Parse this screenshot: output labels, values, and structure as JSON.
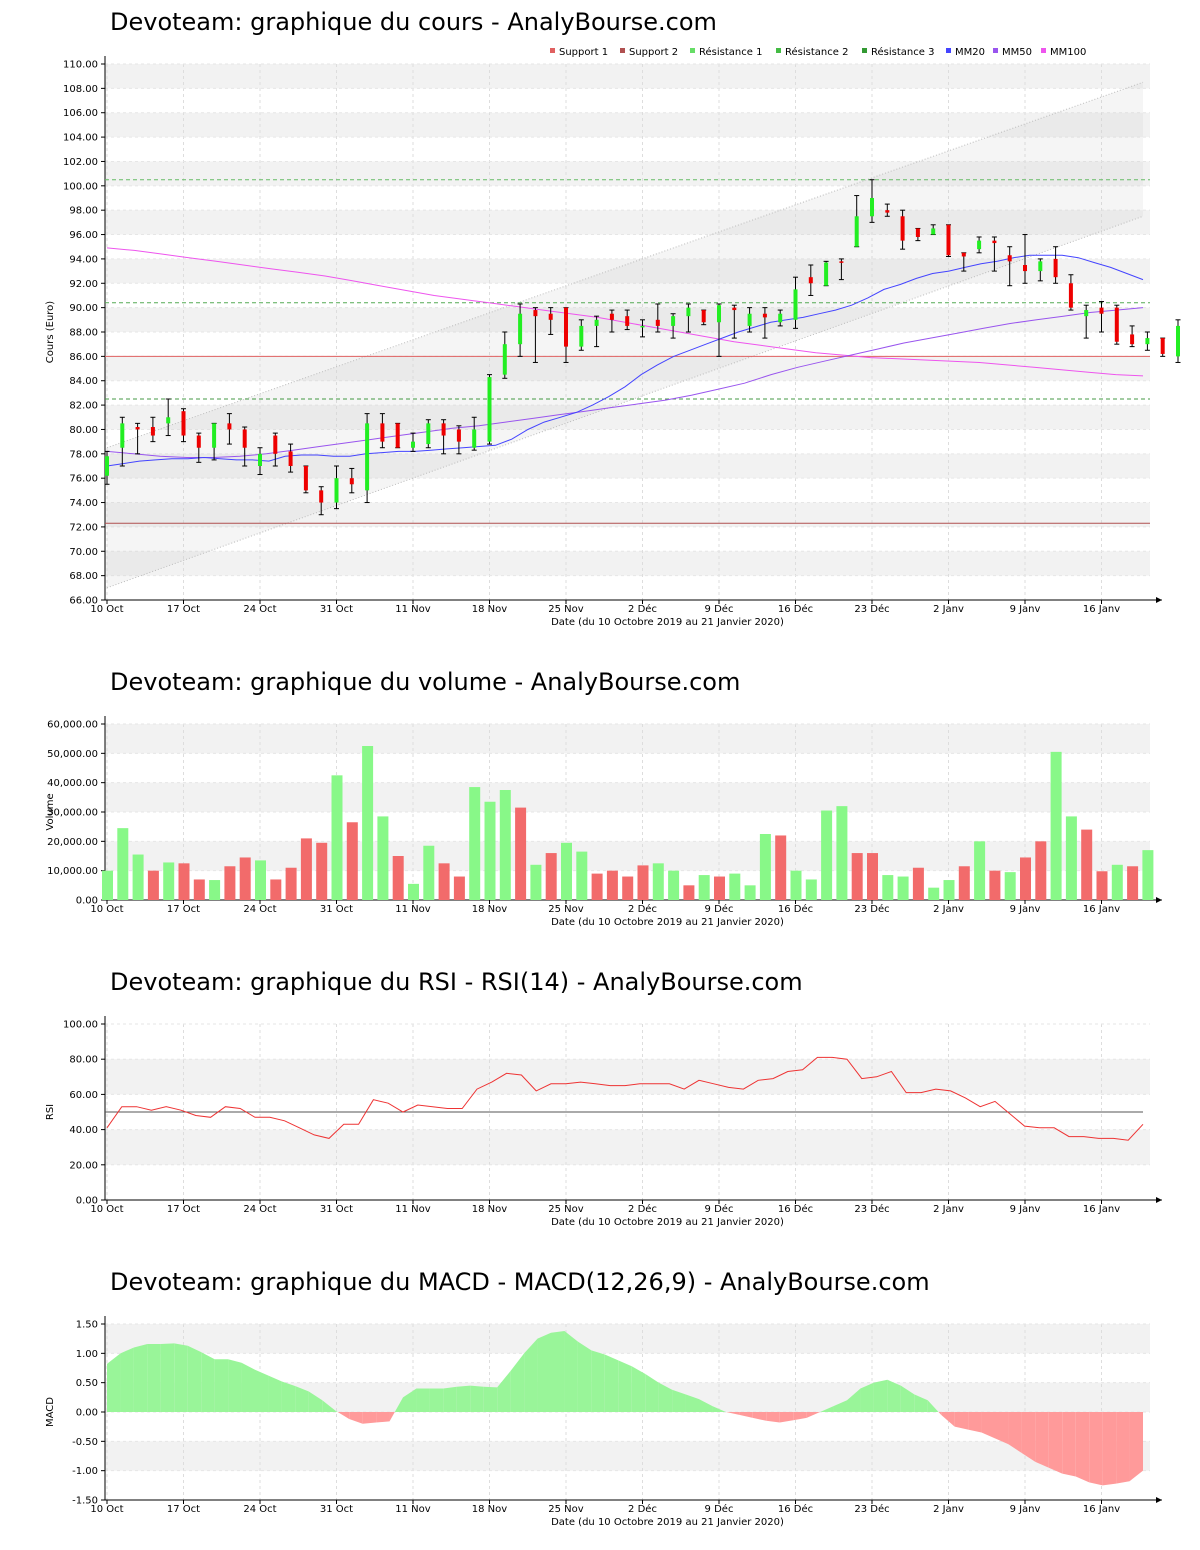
{
  "chart_data": [
    {
      "type": "candlestick",
      "title": "Devoteam: graphique du cours - AnalyBourse.com",
      "xlabel": "Date (du 10 Octobre 2019 au 21 Janvier 2020)",
      "ylabel": "Cours (Euro)",
      "ylim": [
        66,
        110
      ],
      "y_ticks": [
        "66.00",
        "68.00",
        "70.00",
        "72.00",
        "74.00",
        "76.00",
        "78.00",
        "80.00",
        "82.00",
        "84.00",
        "86.00",
        "88.00",
        "90.00",
        "92.00",
        "94.00",
        "96.00",
        "98.00",
        "100.00",
        "102.00",
        "104.00",
        "106.00",
        "108.00",
        "110.00"
      ],
      "x_ticks": [
        {
          "label": "10 Oct",
          "index": 0
        },
        {
          "label": "17 Oct",
          "index": 5
        },
        {
          "label": "24 Oct",
          "index": 10
        },
        {
          "label": "31 Oct",
          "index": 15
        },
        {
          "label": "11 Nov",
          "index": 20
        },
        {
          "label": "18 Nov",
          "index": 25
        },
        {
          "label": "25 Nov",
          "index": 30
        },
        {
          "label": "2 Déc",
          "index": 35
        },
        {
          "label": "9 Déc",
          "index": 40
        },
        {
          "label": "16 Déc",
          "index": 45
        },
        {
          "label": "23 Déc",
          "index": 50
        },
        {
          "label": "2 Janv",
          "index": 55
        },
        {
          "label": "9 Janv",
          "index": 60
        },
        {
          "label": "16 Janv",
          "index": 65
        }
      ],
      "legend": [
        {
          "name": "Support 1",
          "color": "#e06060"
        },
        {
          "name": "Support 2",
          "color": "#b05050"
        },
        {
          "name": "Résistance 1",
          "color": "#66dd66"
        },
        {
          "name": "Résistance 2",
          "color": "#44bb44"
        },
        {
          "name": "Résistance 3",
          "color": "#339933"
        },
        {
          "name": "MM20",
          "color": "#4444ff"
        },
        {
          "name": "MM50",
          "color": "#9955ee"
        },
        {
          "name": "MM100",
          "color": "#ee55ee"
        }
      ],
      "legend_position": "top-right",
      "supports": [
        86.0,
        72.3
      ],
      "resistances": [
        100.5,
        90.4,
        82.5
      ],
      "channel": {
        "upper": [
          78.5,
          108.5
        ],
        "lower": [
          67.0,
          97.5
        ]
      },
      "candles": [
        {
          "o": 76.2,
          "h": 78.2,
          "l": 75.5,
          "c": 77.8
        },
        {
          "o": 78.5,
          "h": 81.0,
          "l": 77.0,
          "c": 80.5
        },
        {
          "o": 80.2,
          "h": 80.5,
          "l": 78.0,
          "c": 80.0
        },
        {
          "o": 80.2,
          "h": 81.0,
          "l": 79.0,
          "c": 79.5
        },
        {
          "o": 80.5,
          "h": 82.5,
          "l": 79.5,
          "c": 81.0
        },
        {
          "o": 81.5,
          "h": 81.7,
          "l": 79.0,
          "c": 79.5
        },
        {
          "o": 79.5,
          "h": 79.7,
          "l": 77.3,
          "c": 78.5
        },
        {
          "o": 78.5,
          "h": 80.5,
          "l": 77.5,
          "c": 80.5
        },
        {
          "o": 80.5,
          "h": 81.3,
          "l": 78.8,
          "c": 80.0
        },
        {
          "o": 80.0,
          "h": 80.2,
          "l": 77.0,
          "c": 78.5
        },
        {
          "o": 77.0,
          "h": 78.5,
          "l": 76.3,
          "c": 78.0
        },
        {
          "o": 79.5,
          "h": 79.7,
          "l": 77.0,
          "c": 78.0
        },
        {
          "o": 78.2,
          "h": 78.8,
          "l": 76.5,
          "c": 77.0
        },
        {
          "o": 77.0,
          "h": 77.0,
          "l": 74.8,
          "c": 75.0
        },
        {
          "o": 75.0,
          "h": 75.3,
          "l": 73.0,
          "c": 74.0
        },
        {
          "o": 74.0,
          "h": 77.0,
          "l": 73.5,
          "c": 76.0
        },
        {
          "o": 76.0,
          "h": 76.8,
          "l": 74.8,
          "c": 75.5
        },
        {
          "o": 75.0,
          "h": 81.3,
          "l": 74.0,
          "c": 80.5
        },
        {
          "o": 80.5,
          "h": 81.3,
          "l": 78.5,
          "c": 79.0
        },
        {
          "o": 80.5,
          "h": 80.5,
          "l": 78.5,
          "c": 78.5
        },
        {
          "o": 78.5,
          "h": 79.7,
          "l": 78.2,
          "c": 79.0
        },
        {
          "o": 78.8,
          "h": 80.8,
          "l": 78.5,
          "c": 80.5
        },
        {
          "o": 80.5,
          "h": 80.8,
          "l": 78.0,
          "c": 79.5
        },
        {
          "o": 80.0,
          "h": 80.3,
          "l": 78.0,
          "c": 79.0
        },
        {
          "o": 78.5,
          "h": 81.0,
          "l": 78.3,
          "c": 80.0
        },
        {
          "o": 79.0,
          "h": 84.5,
          "l": 78.8,
          "c": 84.3
        },
        {
          "o": 84.5,
          "h": 88.0,
          "l": 84.2,
          "c": 87.0
        },
        {
          "o": 87.0,
          "h": 90.3,
          "l": 86.0,
          "c": 89.5
        },
        {
          "o": 89.8,
          "h": 90.0,
          "l": 85.5,
          "c": 89.3
        },
        {
          "o": 89.5,
          "h": 90.0,
          "l": 87.8,
          "c": 89.0
        },
        {
          "o": 90.0,
          "h": 90.0,
          "l": 85.5,
          "c": 86.8
        },
        {
          "o": 86.8,
          "h": 89.0,
          "l": 86.5,
          "c": 88.5
        },
        {
          "o": 88.5,
          "h": 89.3,
          "l": 86.8,
          "c": 89.0
        },
        {
          "o": 89.5,
          "h": 89.8,
          "l": 88.0,
          "c": 89.0
        },
        {
          "o": 89.3,
          "h": 89.8,
          "l": 88.2,
          "c": 88.5
        },
        {
          "o": 88.5,
          "h": 89.0,
          "l": 87.6,
          "c": 88.5
        },
        {
          "o": 89.0,
          "h": 90.3,
          "l": 88.0,
          "c": 88.5
        },
        {
          "o": 88.5,
          "h": 89.5,
          "l": 87.5,
          "c": 89.3
        },
        {
          "o": 89.3,
          "h": 90.3,
          "l": 88.0,
          "c": 90.0
        },
        {
          "o": 89.8,
          "h": 89.8,
          "l": 88.6,
          "c": 88.8
        },
        {
          "o": 88.8,
          "h": 90.3,
          "l": 86.0,
          "c": 90.2
        },
        {
          "o": 90.0,
          "h": 90.2,
          "l": 87.5,
          "c": 89.8
        },
        {
          "o": 88.5,
          "h": 90.0,
          "l": 88.0,
          "c": 89.5
        },
        {
          "o": 89.5,
          "h": 90.0,
          "l": 87.5,
          "c": 89.2
        },
        {
          "o": 88.8,
          "h": 89.8,
          "l": 88.5,
          "c": 89.5
        },
        {
          "o": 89.0,
          "h": 92.5,
          "l": 88.3,
          "c": 91.5
        },
        {
          "o": 92.5,
          "h": 93.5,
          "l": 91.0,
          "c": 92.0
        },
        {
          "o": 91.8,
          "h": 93.8,
          "l": 91.8,
          "c": 93.7
        },
        {
          "o": 93.8,
          "h": 94.0,
          "l": 92.3,
          "c": 93.7
        },
        {
          "o": 95.0,
          "h": 99.2,
          "l": 95.0,
          "c": 97.5
        },
        {
          "o": 97.5,
          "h": 100.5,
          "l": 97.0,
          "c": 99.0
        },
        {
          "o": 98.0,
          "h": 98.5,
          "l": 97.5,
          "c": 97.8
        },
        {
          "o": 97.5,
          "h": 98.0,
          "l": 94.8,
          "c": 95.5
        },
        {
          "o": 96.5,
          "h": 96.5,
          "l": 95.5,
          "c": 95.8
        },
        {
          "o": 96.0,
          "h": 96.8,
          "l": 96.0,
          "c": 96.5
        },
        {
          "o": 96.8,
          "h": 96.8,
          "l": 94.2,
          "c": 94.3
        },
        {
          "o": 94.5,
          "h": 94.5,
          "l": 93.0,
          "c": 94.2
        },
        {
          "o": 94.8,
          "h": 95.8,
          "l": 94.5,
          "c": 95.5
        },
        {
          "o": 95.5,
          "h": 95.8,
          "l": 93.0,
          "c": 95.3
        },
        {
          "o": 94.3,
          "h": 95.0,
          "l": 91.8,
          "c": 93.8
        },
        {
          "o": 93.5,
          "h": 96.0,
          "l": 92.0,
          "c": 93.0
        },
        {
          "o": 93.0,
          "h": 94.0,
          "l": 92.2,
          "c": 93.8
        },
        {
          "o": 94.0,
          "h": 95.0,
          "l": 92.0,
          "c": 92.5
        },
        {
          "o": 92.0,
          "h": 92.7,
          "l": 89.8,
          "c": 90.0
        },
        {
          "o": 89.3,
          "h": 90.2,
          "l": 87.5,
          "c": 89.8
        },
        {
          "o": 90.0,
          "h": 90.5,
          "l": 88.0,
          "c": 89.5
        },
        {
          "o": 90.0,
          "h": 90.2,
          "l": 87.0,
          "c": 87.2
        },
        {
          "o": 87.8,
          "h": 88.5,
          "l": 86.8,
          "c": 87.0
        },
        {
          "o": 87.0,
          "h": 88.0,
          "l": 86.5,
          "c": 87.5
        },
        {
          "o": 87.5,
          "h": 87.5,
          "l": 86.0,
          "c": 86.2
        },
        {
          "o": 86.0,
          "h": 89.0,
          "l": 85.5,
          "c": 88.5
        }
      ],
      "mm20": [
        77.0,
        77.2,
        77.4,
        77.5,
        77.6,
        77.6,
        77.7,
        77.6,
        77.5,
        77.5,
        77.4,
        77.8,
        77.9,
        77.9,
        77.8,
        77.8,
        78.0,
        78.1,
        78.2,
        78.2,
        78.3,
        78.4,
        78.5,
        78.6,
        78.7,
        79.2,
        80.0,
        80.6,
        81.0,
        81.4,
        82.0,
        82.7,
        83.5,
        84.5,
        85.3,
        86.0,
        86.5,
        87.0,
        87.5,
        88.0,
        88.4,
        88.8,
        89.0,
        89.2,
        89.5,
        89.8,
        90.2,
        90.8,
        91.5,
        91.9,
        92.4,
        92.8,
        93.0,
        93.3,
        93.6,
        93.8,
        94.1,
        94.3,
        94.3,
        94.3,
        94.1,
        93.7,
        93.3,
        92.8,
        92.3
      ],
      "mm50": [
        78.2,
        78.0,
        77.8,
        77.7,
        77.7,
        77.8,
        78.0,
        78.3,
        78.6,
        78.9,
        79.2,
        79.5,
        79.8,
        80.1,
        80.3,
        80.6,
        80.9,
        81.2,
        81.5,
        81.8,
        82.1,
        82.4,
        82.8,
        83.3,
        83.8,
        84.5,
        85.1,
        85.6,
        86.1,
        86.6,
        87.1,
        87.5,
        87.9,
        88.3,
        88.7,
        89.0,
        89.3,
        89.6,
        89.8,
        90.0
      ],
      "mm100": [
        94.9,
        94.7,
        94.4,
        94.1,
        93.8,
        93.5,
        93.2,
        92.9,
        92.6,
        92.2,
        91.8,
        91.4,
        91.0,
        90.7,
        90.4,
        90.1,
        89.8,
        89.5,
        89.2,
        88.8,
        88.4,
        88.0,
        87.6,
        87.2,
        86.9,
        86.6,
        86.3,
        86.1,
        85.9,
        85.8,
        85.7,
        85.6,
        85.5,
        85.3,
        85.1,
        84.9,
        84.7,
        84.5,
        84.4
      ]
    },
    {
      "type": "bar",
      "title": "Devoteam: graphique du volume - AnalyBourse.com",
      "xlabel": "Date (du 10 Octobre 2019 au 21 Janvier 2020)",
      "ylabel": "Volume",
      "ylim": [
        0,
        60000
      ],
      "y_ticks": [
        "0.00",
        "10,000.00",
        "20,000.00",
        "30,000.00",
        "40,000.00",
        "50,000.00",
        "60,000.00"
      ],
      "values": [
        10000,
        24500,
        15500,
        10000,
        12800,
        12500,
        7000,
        6800,
        11500,
        14500,
        13500,
        7000,
        11000,
        21000,
        19500,
        42500,
        26500,
        52500,
        28500,
        15000,
        5500,
        18500,
        12500,
        8000,
        38500,
        33500,
        37500,
        31500,
        12000,
        16000,
        19500,
        16500,
        9000,
        10000,
        8000,
        11800,
        12500,
        10000,
        5000,
        8500,
        8000,
        9000,
        5000,
        22500,
        22000,
        10000,
        7000,
        30500,
        32000,
        16000,
        16000,
        8500,
        8000,
        11000,
        4200,
        6800,
        11500,
        20000,
        10000,
        9500,
        14500,
        20000,
        50500,
        28500,
        24000,
        9800,
        12000,
        11500,
        17000
      ],
      "up": [
        1,
        1,
        1,
        0,
        1,
        0,
        0,
        1,
        0,
        0,
        1,
        0,
        0,
        0,
        0,
        1,
        0,
        1,
        1,
        0,
        1,
        1,
        0,
        0,
        1,
        1,
        1,
        0,
        1,
        0,
        1,
        1,
        0,
        0,
        0,
        0,
        1,
        1,
        0,
        1,
        0,
        1,
        1,
        1,
        0,
        1,
        1,
        1,
        1,
        0,
        0,
        1,
        1,
        0,
        1,
        1,
        0,
        1,
        0,
        1,
        0,
        0,
        1,
        1,
        0,
        0,
        1,
        0,
        1
      ]
    },
    {
      "type": "line",
      "title": "Devoteam: graphique du RSI - RSI(14) - AnalyBourse.com",
      "xlabel": "Date (du 10 Octobre 2019 au 21 Janvier 2020)",
      "ylabel": "RSI",
      "ylim": [
        0,
        100
      ],
      "y_ticks": [
        "0.00",
        "20.00",
        "40.00",
        "60.00",
        "80.00",
        "100.00"
      ],
      "reference_line": 50,
      "values": [
        41,
        53,
        53,
        51,
        53,
        51,
        48,
        47,
        53,
        52,
        47,
        47,
        45,
        41,
        37,
        35,
        43,
        43,
        57,
        55,
        50,
        54,
        53,
        52,
        52,
        63,
        67,
        72,
        71,
        62,
        66,
        66,
        67,
        66,
        65,
        65,
        66,
        66,
        66,
        63,
        68,
        66,
        64,
        63,
        68,
        69,
        73,
        74,
        81,
        81,
        80,
        69,
        70,
        73,
        61,
        61,
        63,
        62,
        58,
        53,
        56,
        49,
        42,
        41,
        41,
        36,
        36,
        35,
        35,
        34,
        43
      ]
    },
    {
      "type": "area",
      "title": "Devoteam: graphique du MACD - MACD(12,26,9) - AnalyBourse.com",
      "xlabel": "Date (du 10 Octobre 2019 au 21 Janvier 2020)",
      "ylabel": "MACD",
      "ylim": [
        -1.5,
        1.5
      ],
      "y_ticks": [
        "-1.50",
        "-1.00",
        "-0.50",
        "0.00",
        "0.50",
        "1.00",
        "1.50"
      ],
      "values": [
        0.82,
        1.0,
        1.1,
        1.16,
        1.16,
        1.17,
        1.13,
        1.02,
        0.9,
        0.9,
        0.84,
        0.72,
        0.62,
        0.52,
        0.44,
        0.35,
        0.2,
        0.02,
        -0.12,
        -0.2,
        -0.18,
        -0.16,
        0.25,
        0.4,
        0.4,
        0.4,
        0.43,
        0.45,
        0.43,
        0.42,
        0.7,
        1.0,
        1.25,
        1.35,
        1.38,
        1.2,
        1.05,
        0.98,
        0.88,
        0.78,
        0.65,
        0.5,
        0.38,
        0.3,
        0.22,
        0.1,
        0.0,
        -0.05,
        -0.1,
        -0.15,
        -0.18,
        -0.14,
        -0.1,
        0.0,
        0.1,
        0.2,
        0.4,
        0.5,
        0.55,
        0.45,
        0.3,
        0.2,
        -0.05,
        -0.25,
        -0.3,
        -0.35,
        -0.45,
        -0.55,
        -0.7,
        -0.85,
        -0.95,
        -1.05,
        -1.1,
        -1.2,
        -1.25,
        -1.22,
        -1.18,
        -1.0
      ]
    }
  ]
}
